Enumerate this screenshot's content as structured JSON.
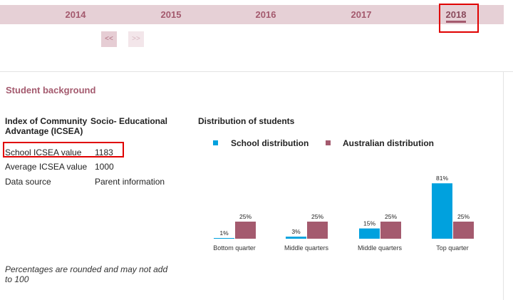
{
  "years": {
    "tabs": [
      "2014",
      "2015",
      "2016",
      "2017",
      "2018"
    ],
    "active": "2018"
  },
  "pager": {
    "prev_label": "<<",
    "next_label": ">>"
  },
  "section": {
    "title": "Student background",
    "index_label_a": "Index of Community Advantage (ICSEA)",
    "index_label_b": "Socio- Educational",
    "rows": [
      {
        "label": "School ICSEA value",
        "value": "1183"
      },
      {
        "label": "Average ICSEA value",
        "value": "1000"
      },
      {
        "label": "Data source",
        "value": "Parent information"
      }
    ],
    "footnote": "Percentages are rounded and may not add to 100"
  },
  "colors": {
    "school": "#00a1de",
    "australian": "#a45a6e",
    "accent": "#a45a6e",
    "highlight": "#e00000"
  },
  "chart_data": {
    "type": "bar",
    "title": "Distribution of students",
    "categories": [
      "Bottom quarter",
      "Middle quarters",
      "Middle quarters",
      "Top quarter"
    ],
    "series": [
      {
        "name": "School distribution",
        "values": [
          1,
          3,
          15,
          81
        ],
        "labels": [
          "1%",
          "3%",
          "15%",
          "81%"
        ]
      },
      {
        "name": "Australian distribution",
        "values": [
          25,
          25,
          25,
          25
        ],
        "labels": [
          "25%",
          "25%",
          "25%",
          "25%"
        ]
      }
    ],
    "ylim": [
      0,
      100
    ],
    "legend": "top"
  }
}
